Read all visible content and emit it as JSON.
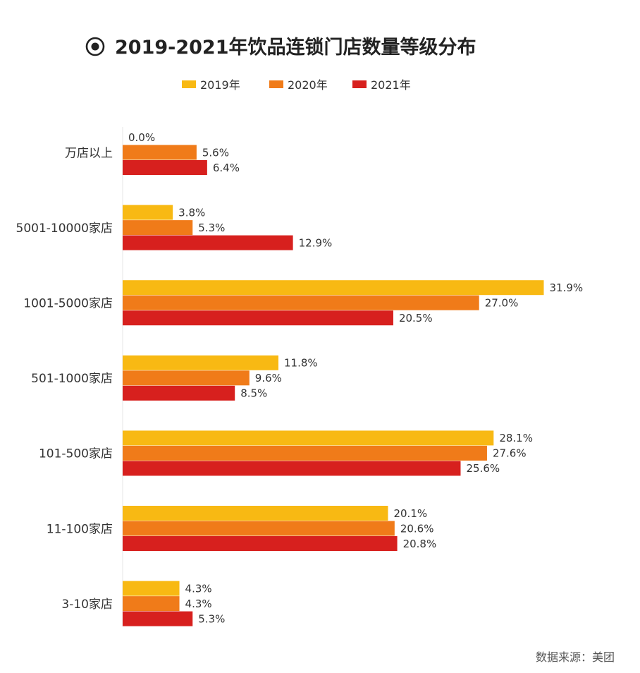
{
  "chart_data": {
    "type": "bar",
    "orientation": "horizontal",
    "title": "2019-2021年饮品连锁门店数量等级分布",
    "title_icon": "target-icon",
    "categories": [
      "万店以上",
      "5001-10000家店",
      "1001-5000家店",
      "501-1000家店",
      "101-500家店",
      "11-100家店",
      "3-10家店"
    ],
    "series": [
      {
        "name": "2019年",
        "color": "#F8B913",
        "values": [
          0.0,
          3.8,
          31.9,
          11.8,
          28.1,
          20.1,
          4.3
        ],
        "labels": [
          "0.0%",
          "3.8%",
          "31.9%",
          "11.8%",
          "28.1%",
          "20.1%",
          "4.3%"
        ]
      },
      {
        "name": "2020年",
        "color": "#F07B19",
        "values": [
          5.6,
          5.3,
          27.0,
          9.6,
          27.6,
          20.6,
          4.3
        ],
        "labels": [
          "5.6%",
          "5.3%",
          "27.0%",
          "9.6%",
          "27.6%",
          "20.6%",
          "4.3%"
        ]
      },
      {
        "name": "2021年",
        "color": "#D7201E",
        "values": [
          6.4,
          12.9,
          20.5,
          8.5,
          25.6,
          20.8,
          5.3
        ],
        "labels": [
          "6.4%",
          "12.9%",
          "20.5%",
          "8.5%",
          "25.6%",
          "20.8%",
          "5.3%"
        ]
      }
    ],
    "unit": "%",
    "xlim": [
      0,
      32
    ],
    "grid": false,
    "legend_position": "top-center",
    "source": "数据来源：美团"
  }
}
